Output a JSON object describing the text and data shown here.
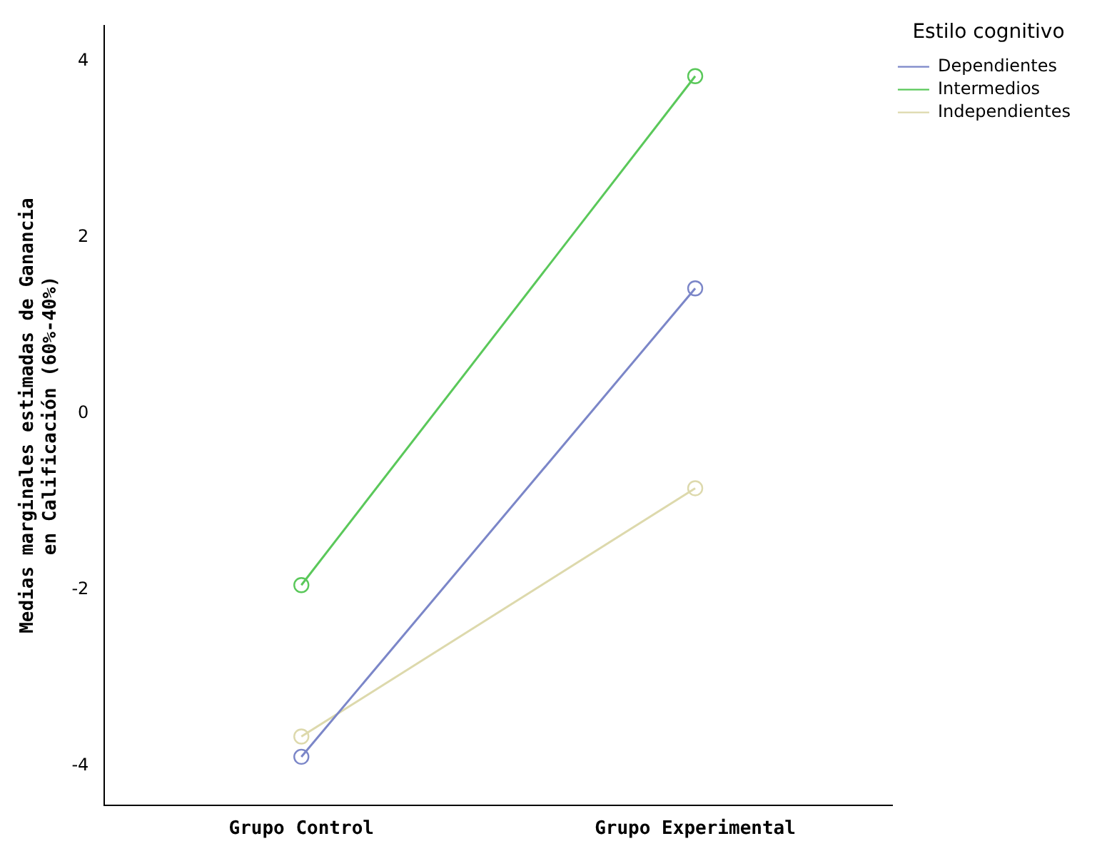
{
  "chart_data": {
    "type": "line",
    "ylabel": "Medias marginales estimadas de Ganancia en Calificación (60%-40%)",
    "legend_title": "Estilo cognitivo",
    "categories": [
      "Grupo Control",
      "Grupo Experimental"
    ],
    "series": [
      {
        "name": "Dependientes",
        "color": "#7b86c8",
        "values": [
          -3.9,
          1.42
        ]
      },
      {
        "name": "Intermedios",
        "color": "#5ac85a",
        "values": [
          -1.95,
          3.83
        ]
      },
      {
        "name": "Independientes",
        "color": "#ddd9ac",
        "values": [
          -3.67,
          -0.85
        ]
      }
    ],
    "ylim": [
      -4.45,
      4.4
    ],
    "yticks": [
      -4,
      -2,
      0,
      2,
      4
    ],
    "grid": false,
    "legend": "top right",
    "marker": "circle",
    "line_style": "solid"
  }
}
